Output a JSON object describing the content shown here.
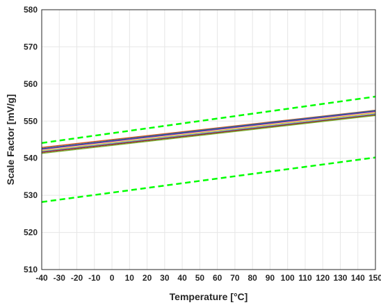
{
  "chart_data": {
    "type": "line",
    "title": "",
    "xlabel": "Temperature [°C]",
    "ylabel": "Scale Factor [mV/g]",
    "xlim": [
      -40,
      150
    ],
    "ylim": [
      510,
      580
    ],
    "x_ticks": [
      -40,
      -30,
      -20,
      -10,
      0,
      10,
      20,
      30,
      40,
      50,
      60,
      70,
      80,
      90,
      100,
      110,
      120,
      130,
      140,
      150
    ],
    "y_ticks": [
      510,
      520,
      530,
      540,
      550,
      560,
      570,
      580
    ],
    "grid": true,
    "legend": "none",
    "series": [
      {
        "color": "#d95319",
        "style": "solid",
        "x": [
          -40,
          150
        ],
        "y": [
          542.9,
          552.9
        ]
      },
      {
        "color": "#0072bd",
        "style": "solid",
        "x": [
          -40,
          150
        ],
        "y": [
          542.6,
          552.8
        ]
      },
      {
        "color": "#7e2f8e",
        "style": "solid",
        "x": [
          -40,
          150
        ],
        "y": [
          542.4,
          552.6
        ]
      },
      {
        "color": "#edb120",
        "style": "solid",
        "x": [
          -40,
          150
        ],
        "y": [
          542.0,
          552.2
        ]
      },
      {
        "color": "#4dbeee",
        "style": "solid",
        "x": [
          -40,
          150
        ],
        "y": [
          541.8,
          551.9
        ]
      },
      {
        "color": "#a2142f",
        "style": "solid",
        "x": [
          -40,
          150
        ],
        "y": [
          541.6,
          551.7
        ]
      },
      {
        "color": "#77ac30",
        "style": "solid",
        "x": [
          -40,
          150
        ],
        "y": [
          541.3,
          551.5
        ]
      },
      {
        "color": "#00ff00",
        "style": "dashed",
        "x": [
          -40,
          150
        ],
        "y": [
          544.1,
          556.6
        ]
      },
      {
        "color": "#00ff00",
        "style": "dashed",
        "x": [
          -40,
          150
        ],
        "y": [
          528.2,
          540.2
        ]
      }
    ]
  }
}
